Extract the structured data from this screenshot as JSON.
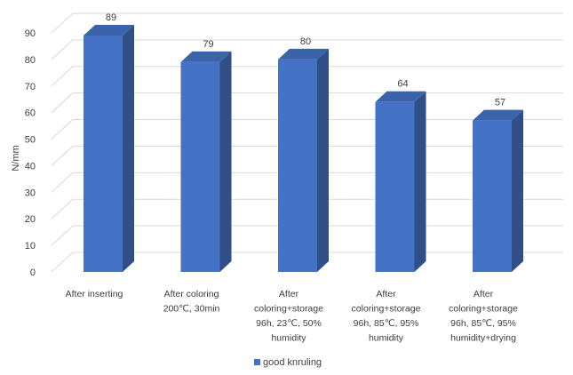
{
  "chart_data": {
    "type": "bar",
    "style": "3d-column",
    "categories": [
      [
        "After inserting"
      ],
      [
        "After coloring",
        "200℃, 30min"
      ],
      [
        "After",
        "coloring+storage",
        "96h, 23℃, 50%",
        "humidity"
      ],
      [
        "After",
        "coloring+storage",
        "96h, 85℃, 95%",
        "humidity"
      ],
      [
        "After",
        "coloring+storage",
        "96h, 85℃, 95%",
        "humidity+drying"
      ]
    ],
    "series": [
      {
        "name": "good knruling",
        "values": [
          89,
          79,
          80,
          64,
          57
        ],
        "color": "#4472C4",
        "side_color": "#2F4F86",
        "top_color": "#3A63AA"
      }
    ],
    "data_labels": [
      "89",
      "79",
      "80",
      "64",
      "57"
    ],
    "ylabel": "N/mm",
    "xlabel": "",
    "title": "",
    "ylim": [
      0,
      90
    ],
    "yticks": [
      0,
      10,
      20,
      30,
      40,
      50,
      60,
      70,
      80,
      90
    ],
    "grid": true,
    "grid_color": "#D9D9D9",
    "legend_position": "bottom"
  }
}
